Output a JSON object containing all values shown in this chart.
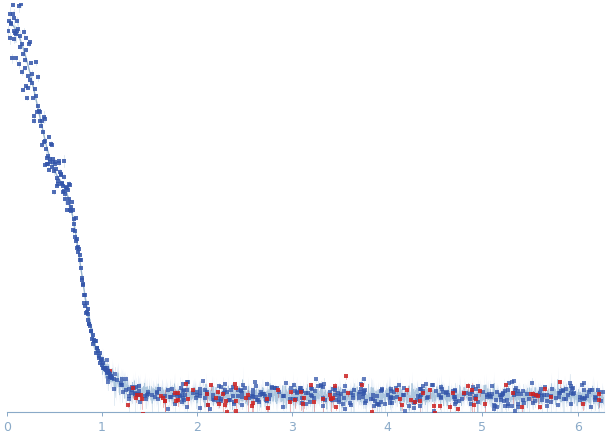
{
  "xlim": [
    0,
    6.28
  ],
  "background_color": "#ffffff",
  "axis_color": "#8aaac8",
  "tick_label_color": "#8aaac8",
  "curve_color": "#a8c4dc",
  "dot_color_blue": "#3355aa",
  "dot_color_red": "#cc2222",
  "error_band_color": "#c8d8ee",
  "xticks": [
    0,
    1,
    2,
    3,
    4,
    5,
    6
  ],
  "figsize": [
    6.07,
    4.37
  ],
  "dpi": 100
}
